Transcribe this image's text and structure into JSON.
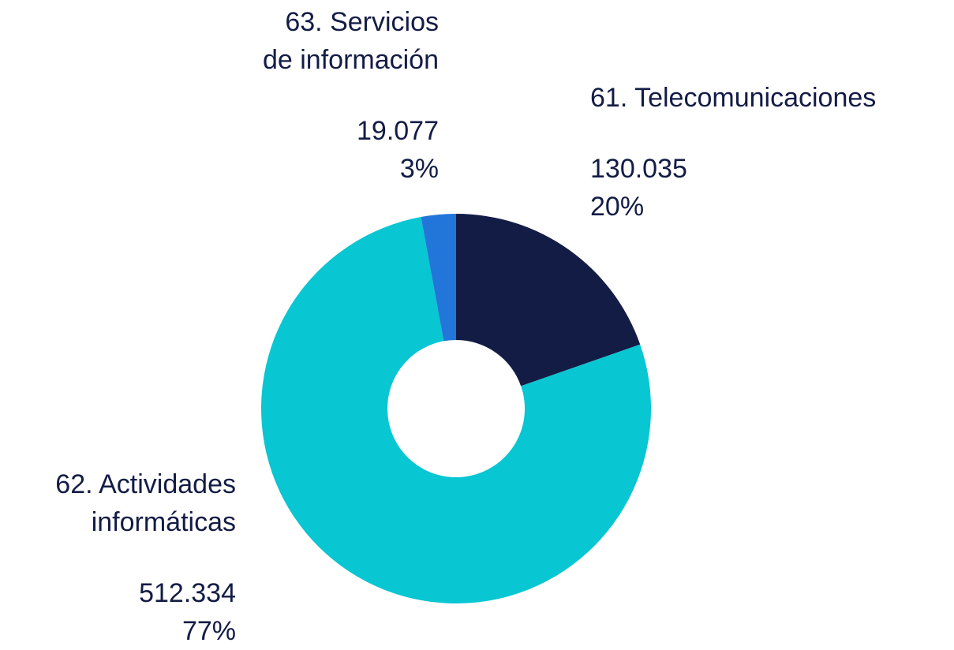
{
  "chart_data": {
    "type": "donut",
    "categories": [
      "61. Telecomunicaciones",
      "62. Actividades\ninformáticas",
      "63. Servicios\nde información"
    ],
    "values": [
      130035,
      512334,
      19077
    ],
    "value_labels": [
      "130.035",
      "512.334",
      "19.077"
    ],
    "percent_labels": [
      "20%",
      "77%",
      "3%"
    ],
    "colors": [
      "#131c45",
      "#08c6d2",
      "#2276d9"
    ]
  }
}
